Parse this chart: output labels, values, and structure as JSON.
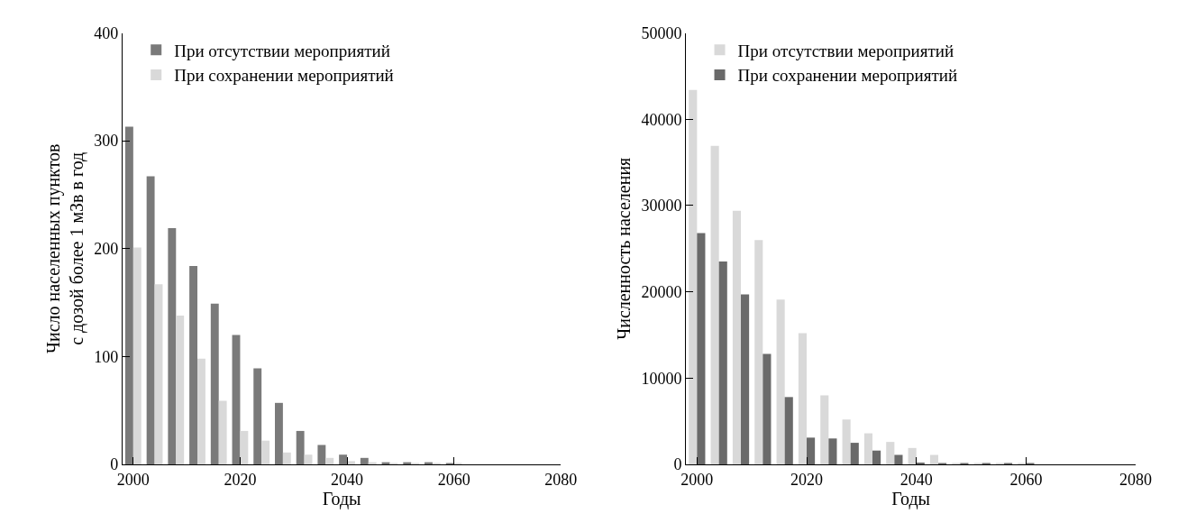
{
  "chart_data": [
    {
      "type": "bar",
      "xlabel": "Годы",
      "ylabel": "Число населенных пунктов\nс дозой более 1 мЗв в год",
      "x": [
        2000,
        2004,
        2008,
        2012,
        2016,
        2020,
        2024,
        2028,
        2032,
        2036,
        2040,
        2044,
        2048,
        2052,
        2056,
        2060
      ],
      "series": [
        {
          "name": "При отсутствии мероприятий",
          "color": "#7a7a7a",
          "values": [
            313,
            267,
            219,
            184,
            149,
            120,
            89,
            57,
            31,
            18,
            9,
            6,
            2,
            2,
            2,
            1
          ]
        },
        {
          "name": "При сохранении мероприятий",
          "color": "#d9d9d9",
          "values": [
            201,
            167,
            138,
            98,
            59,
            31,
            22,
            11,
            9,
            6,
            3,
            2,
            1,
            1,
            1,
            1
          ]
        }
      ],
      "xlim": [
        1998,
        2080
      ],
      "xticks": [
        2000,
        2020,
        2040,
        2060,
        2080
      ],
      "ylim": [
        0,
        400
      ],
      "yticks": [
        0,
        100,
        200,
        300,
        400
      ],
      "legend": "top left"
    },
    {
      "type": "bar",
      "xlabel": "Годы",
      "ylabel": "Численность населения",
      "x": [
        2000,
        2004,
        2008,
        2012,
        2016,
        2020,
        2024,
        2028,
        2032,
        2036,
        2040,
        2044,
        2048,
        2052,
        2056,
        2060
      ],
      "series": [
        {
          "name": "При отсутствии мероприятий",
          "color": "#d9d9d9",
          "values": [
            43400,
            36900,
            29400,
            26000,
            19100,
            15200,
            8000,
            5200,
            3600,
            2600,
            1900,
            1100,
            100,
            100,
            100,
            100
          ]
        },
        {
          "name": "При сохранении мероприятий",
          "color": "#6a6a6a",
          "values": [
            26800,
            23500,
            19700,
            12800,
            7800,
            3100,
            3000,
            2500,
            1600,
            1100,
            200,
            100,
            100,
            100,
            100,
            100
          ]
        }
      ],
      "xlim": [
        1998,
        2080
      ],
      "xticks": [
        2000,
        2020,
        2040,
        2060,
        2080
      ],
      "ylim": [
        0,
        50000
      ],
      "yticks": [
        0,
        10000,
        20000,
        30000,
        40000,
        50000
      ],
      "legend": "top left"
    }
  ]
}
